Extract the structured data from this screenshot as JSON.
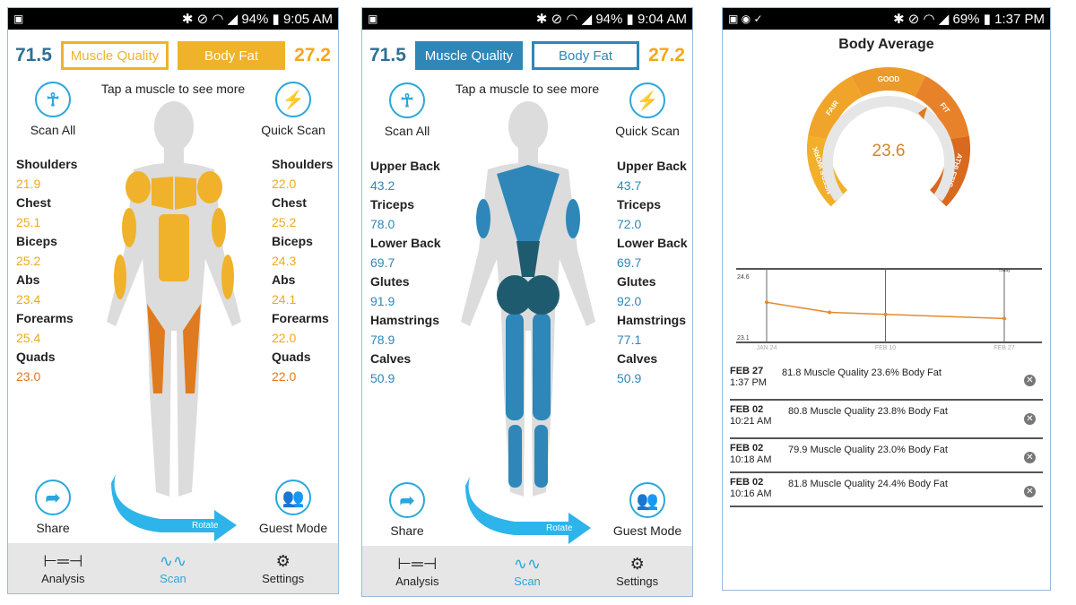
{
  "colors": {
    "orange": "#f0a81c",
    "dark_orange": "#e07a1e",
    "blue": "#2e87b8",
    "teal": "#1f6f8b",
    "accent": "#2aa7dc"
  },
  "phone1": {
    "status": {
      "battery": "94%",
      "time": "9:05 AM"
    },
    "muscle_quality_value": "71.5",
    "muscle_quality_label": "Muscle Quality",
    "body_fat_label": "Body Fat",
    "body_fat_value": "27.2",
    "active_tab": "Body Fat",
    "hint": "Tap a muscle to see more",
    "scan_all": "Scan All",
    "quick_scan": "Quick Scan",
    "share": "Share",
    "guest_mode": "Guest Mode",
    "rotate": "Rotate",
    "left": [
      {
        "label": "Shoulders",
        "value": "21.9"
      },
      {
        "label": "Chest",
        "value": "25.1"
      },
      {
        "label": "Biceps",
        "value": "25.2"
      },
      {
        "label": "Abs",
        "value": "23.4"
      },
      {
        "label": "Forearms",
        "value": "25.4"
      },
      {
        "label": "Quads",
        "value": "23.0"
      }
    ],
    "right": [
      {
        "label": "Shoulders",
        "value": "22.0"
      },
      {
        "label": "Chest",
        "value": "25.2"
      },
      {
        "label": "Biceps",
        "value": "24.3"
      },
      {
        "label": "Abs",
        "value": "24.1"
      },
      {
        "label": "Forearms",
        "value": "22.0"
      },
      {
        "label": "Quads",
        "value": "22.0"
      }
    ],
    "nav": {
      "analysis": "Analysis",
      "scan": "Scan",
      "settings": "Settings"
    }
  },
  "phone2": {
    "status": {
      "battery": "94%",
      "time": "9:04 AM"
    },
    "muscle_quality_value": "71.5",
    "muscle_quality_label": "Muscle Quality",
    "body_fat_label": "Body Fat",
    "body_fat_value": "27.2",
    "active_tab": "Muscle Quality",
    "hint": "Tap a muscle to see more",
    "scan_all": "Scan All",
    "quick_scan": "Quick Scan",
    "share": "Share",
    "guest_mode": "Guest Mode",
    "rotate": "Rotate",
    "left": [
      {
        "label": "Upper Back",
        "value": "43.2"
      },
      {
        "label": "Triceps",
        "value": "78.0"
      },
      {
        "label": "Lower Back",
        "value": "69.7"
      },
      {
        "label": "Glutes",
        "value": "91.9"
      },
      {
        "label": "Hamstrings",
        "value": "78.9"
      },
      {
        "label": "Calves",
        "value": "50.9"
      }
    ],
    "right": [
      {
        "label": "Upper Back",
        "value": "43.7"
      },
      {
        "label": "Triceps",
        "value": "72.0"
      },
      {
        "label": "Lower Back",
        "value": "69.7"
      },
      {
        "label": "Glutes",
        "value": "92.0"
      },
      {
        "label": "Hamstrings",
        "value": "77.1"
      },
      {
        "label": "Calves",
        "value": "50.9"
      }
    ],
    "nav": {
      "analysis": "Analysis",
      "scan": "Scan",
      "settings": "Settings"
    }
  },
  "phone3": {
    "status": {
      "battery": "69%",
      "time": "1:37 PM"
    },
    "title": "Body Average",
    "gauge": {
      "value": "23.6",
      "segments": [
        "NEEDS WORK",
        "FAIR",
        "GOOD",
        "FIT",
        "ATHLETIC"
      ]
    },
    "history": [
      {
        "date": "FEB 27",
        "time": "1:37 PM",
        "summary": "81.8 Muscle Quality 23.6% Body Fat"
      },
      {
        "date": "FEB 02",
        "time": "10:21 AM",
        "summary": "80.8 Muscle Quality 23.8% Body Fat"
      },
      {
        "date": "FEB 02",
        "time": "10:18 AM",
        "summary": "79.9 Muscle Quality 23.0% Body Fat"
      },
      {
        "date": "FEB 02",
        "time": "10:16 AM",
        "summary": "81.8 Muscle Quality 24.4% Body Fat"
      }
    ]
  },
  "chart_data": {
    "type": "line",
    "x": [
      "JAN 24",
      "FEB 02",
      "FEB 10",
      "FEB 27"
    ],
    "y": [
      24.0,
      23.75,
      23.7,
      23.6
    ],
    "ylim": [
      23.1,
      24.6
    ],
    "y_ticks": [
      "24.6",
      "23.1"
    ],
    "x_ticks": [
      "JAN 24",
      "FEB 10",
      "FEB 27"
    ],
    "annotation": "Today",
    "grid": true,
    "color": "#e8892a"
  }
}
